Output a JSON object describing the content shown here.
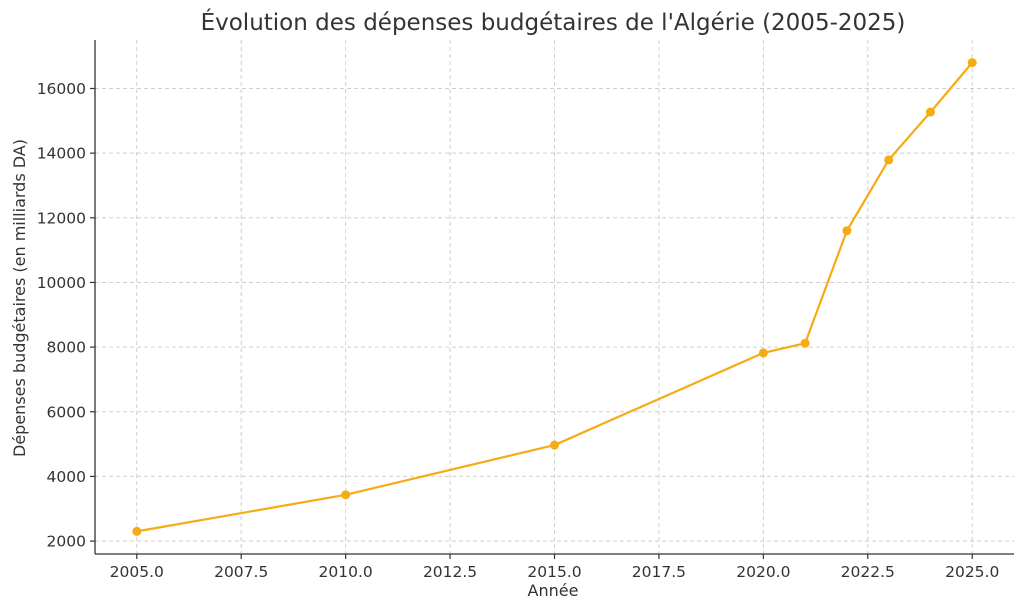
{
  "chart_data": {
    "type": "line",
    "title": "Évolution des dépenses budgétaires de l'Algérie (2005-2025)",
    "xlabel": "Année",
    "ylabel": "Dépenses budgétaires (en milliards DA)",
    "xlim": [
      2004,
      2026
    ],
    "ylim": [
      1600,
      17500
    ],
    "x_ticks": [
      2005.0,
      2007.5,
      2010.0,
      2012.5,
      2015.0,
      2017.5,
      2020.0,
      2022.5,
      2025.0
    ],
    "x_tick_labels": [
      "2005.0",
      "2007.5",
      "2010.0",
      "2012.5",
      "2015.0",
      "2017.5",
      "2020.0",
      "2022.5",
      "2025.0"
    ],
    "y_ticks": [
      2000,
      4000,
      6000,
      8000,
      10000,
      12000,
      14000,
      16000
    ],
    "y_tick_labels": [
      "2000",
      "4000",
      "6000",
      "8000",
      "10000",
      "12000",
      "14000",
      "16000"
    ],
    "grid": true,
    "series": [
      {
        "color": "#f5ab14",
        "x": [
          2005,
          2010,
          2015,
          2020,
          2021,
          2022,
          2023,
          2024,
          2025
        ],
        "y": [
          2300,
          3430,
          4970,
          7820,
          8120,
          11600,
          13790,
          15270,
          16800
        ]
      }
    ]
  }
}
